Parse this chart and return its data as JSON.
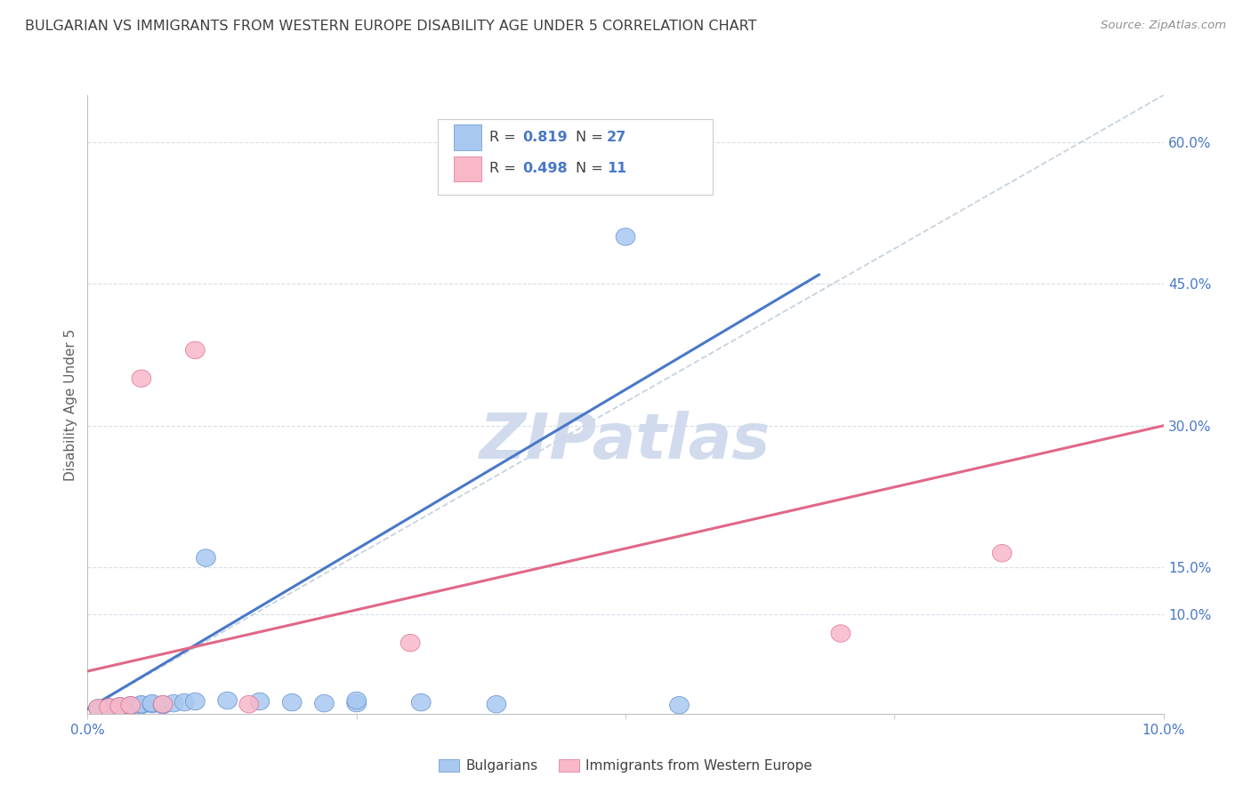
{
  "title": "BULGARIAN VS IMMIGRANTS FROM WESTERN EUROPE DISABILITY AGE UNDER 5 CORRELATION CHART",
  "source": "Source: ZipAtlas.com",
  "ylabel": "Disability Age Under 5",
  "xmin": 0.0,
  "xmax": 0.1,
  "ymin": -0.005,
  "ymax": 0.65,
  "right_yticks": [
    0.1,
    0.15,
    0.3,
    0.45,
    0.6
  ],
  "right_yticklabels": [
    "10.0%",
    "15.0%",
    "30.0%",
    "45.0%",
    "60.0%"
  ],
  "xticks": [
    0.0,
    0.025,
    0.05,
    0.075,
    0.1
  ],
  "xticklabels": [
    "0.0%",
    "",
    "",
    "",
    "10.0%"
  ],
  "blue_R": "0.819",
  "blue_N": "27",
  "pink_R": "0.498",
  "pink_N": "11",
  "blue_color": "#a8c8f0",
  "pink_color": "#f8b8c8",
  "blue_edge_color": "#6090d0",
  "pink_edge_color": "#e07090",
  "blue_line_color": "#4878c8",
  "pink_line_color": "#e06888",
  "ref_line_color": "#b8c8d8",
  "grid_color": "#d8dde8",
  "background_color": "#ffffff",
  "title_color": "#404040",
  "source_color": "#909090",
  "accent_color": "#4878c8",
  "legend_label_blue": "Bulgarians",
  "legend_label_pink": "Immigrants from Western Europe",
  "blue_scatter_x": [
    0.001,
    0.002,
    0.002,
    0.003,
    0.003,
    0.004,
    0.004,
    0.005,
    0.005,
    0.006,
    0.006,
    0.007,
    0.007,
    0.008,
    0.009,
    0.01,
    0.011,
    0.013,
    0.016,
    0.019,
    0.022,
    0.025,
    0.025,
    0.031,
    0.038,
    0.05,
    0.055
  ],
  "blue_scatter_y": [
    0.001,
    0.001,
    0.002,
    0.002,
    0.003,
    0.003,
    0.004,
    0.004,
    0.005,
    0.005,
    0.006,
    0.004,
    0.005,
    0.006,
    0.007,
    0.008,
    0.16,
    0.009,
    0.008,
    0.007,
    0.006,
    0.006,
    0.009,
    0.007,
    0.005,
    0.5,
    0.004
  ],
  "pink_scatter_x": [
    0.001,
    0.002,
    0.003,
    0.004,
    0.005,
    0.007,
    0.01,
    0.015,
    0.03,
    0.07,
    0.085
  ],
  "pink_scatter_y": [
    0.001,
    0.002,
    0.003,
    0.004,
    0.35,
    0.005,
    0.38,
    0.005,
    0.07,
    0.08,
    0.165
  ],
  "blue_line_x": [
    0.0,
    0.068
  ],
  "blue_line_y": [
    0.0,
    0.46
  ],
  "pink_line_x": [
    0.0,
    0.1
  ],
  "pink_line_y": [
    0.04,
    0.3
  ],
  "ref_line_x": [
    0.0,
    0.1
  ],
  "ref_line_y": [
    0.0,
    0.65
  ],
  "watermark_text": "ZIPatlas",
  "watermark_color": "#ccd8ec"
}
